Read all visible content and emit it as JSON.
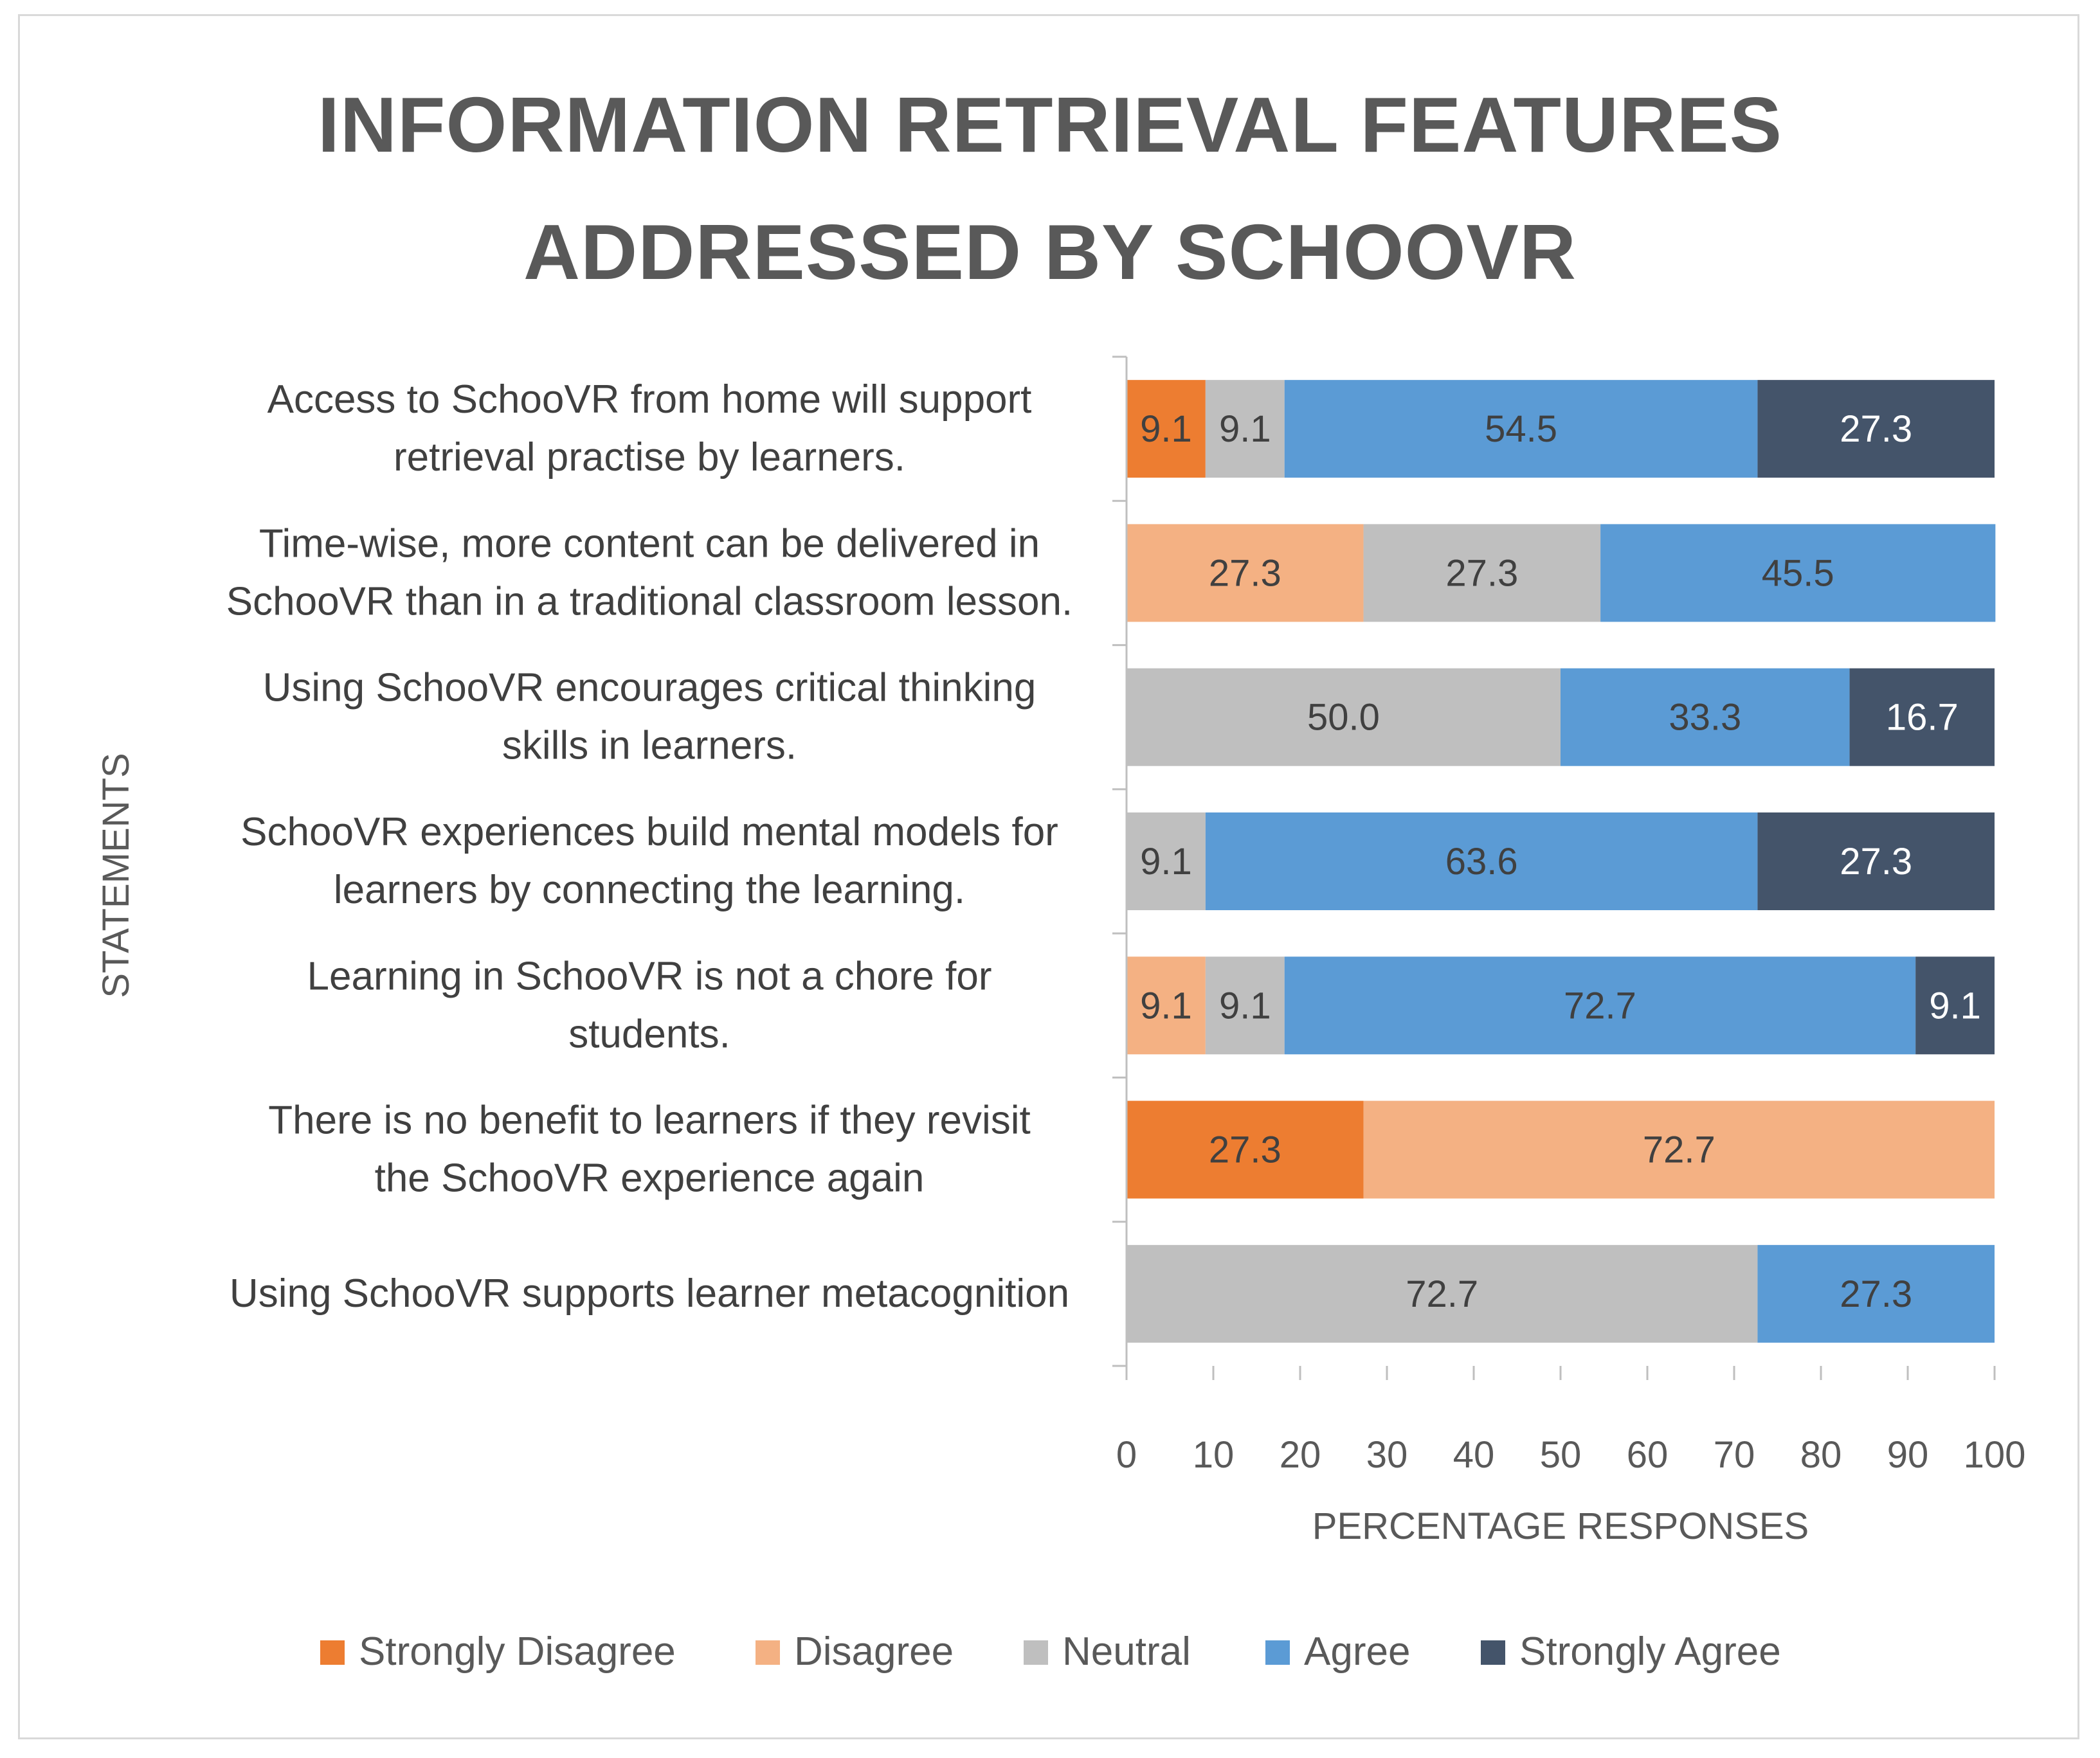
{
  "chart_data": {
    "type": "bar",
    "orientation": "horizontal",
    "stacked": true,
    "title": [
      "INFORMATION RETRIEVAL FEATURES",
      "ADDRESSED BY SCHOOVR"
    ],
    "xlabel": "PERCENTAGE RESPONSES",
    "ylabel": "STATEMENTS",
    "xlim": [
      0,
      100
    ],
    "xticks": [
      "0",
      "10",
      "20",
      "30",
      "40",
      "50",
      "60",
      "70",
      "80",
      "90",
      "100"
    ],
    "legend_position": "bottom",
    "categories": [
      {
        "lines": [
          "Access to SchooVR from home will support",
          "retrieval practise by learners."
        ]
      },
      {
        "lines": [
          "Time-wise, more content can be delivered in",
          "SchooVR than in a traditional classroom lesson."
        ]
      },
      {
        "lines": [
          "Using SchooVR encourages critical thinking",
          "skills in learners."
        ]
      },
      {
        "lines": [
          "SchooVR experiences build mental models for",
          "learners by connecting the learning."
        ]
      },
      {
        "lines": [
          "Learning in SchooVR is not a chore for",
          "students."
        ]
      },
      {
        "lines": [
          "There is no benefit to learners if they revisit",
          "the SchooVR experience again"
        ]
      },
      {
        "lines": [
          "Using SchooVR supports learner metacognition"
        ]
      }
    ],
    "series": [
      {
        "name": "Strongly Disagree",
        "color": "#ed7d31",
        "label_color": "#404040",
        "values": [
          9.1,
          0,
          0,
          0,
          0,
          27.3,
          0
        ],
        "labels": [
          "9.1",
          "",
          "",
          "",
          "",
          "27.3",
          ""
        ]
      },
      {
        "name": "Disagree",
        "color": "#f4b183",
        "label_color": "#404040",
        "values": [
          0,
          27.3,
          0,
          0,
          9.1,
          72.7,
          0
        ],
        "labels": [
          "",
          "27.3",
          "",
          "",
          "9.1",
          "72.7",
          ""
        ]
      },
      {
        "name": "Neutral",
        "color": "#bfbfbf",
        "label_color": "#404040",
        "values": [
          9.1,
          27.3,
          50.0,
          9.1,
          9.1,
          0,
          72.7
        ],
        "labels": [
          "9.1",
          "27.3",
          "50.0",
          "9.1",
          "9.1",
          "",
          "72.7"
        ]
      },
      {
        "name": "Agree",
        "color": "#5b9bd5",
        "label_color": "#404040",
        "values": [
          54.5,
          45.5,
          33.3,
          63.6,
          72.7,
          0,
          27.3
        ],
        "labels": [
          "54.5",
          "45.5",
          "33.3",
          "63.6",
          "72.7",
          "",
          "27.3"
        ]
      },
      {
        "name": "Strongly Agree",
        "color": "#44546a",
        "label_color": "#ffffff",
        "values": [
          27.3,
          0,
          16.7,
          27.3,
          9.1,
          0,
          0
        ],
        "labels": [
          "27.3",
          "",
          "16.7",
          "27.3",
          "9.1",
          "",
          ""
        ]
      }
    ]
  }
}
